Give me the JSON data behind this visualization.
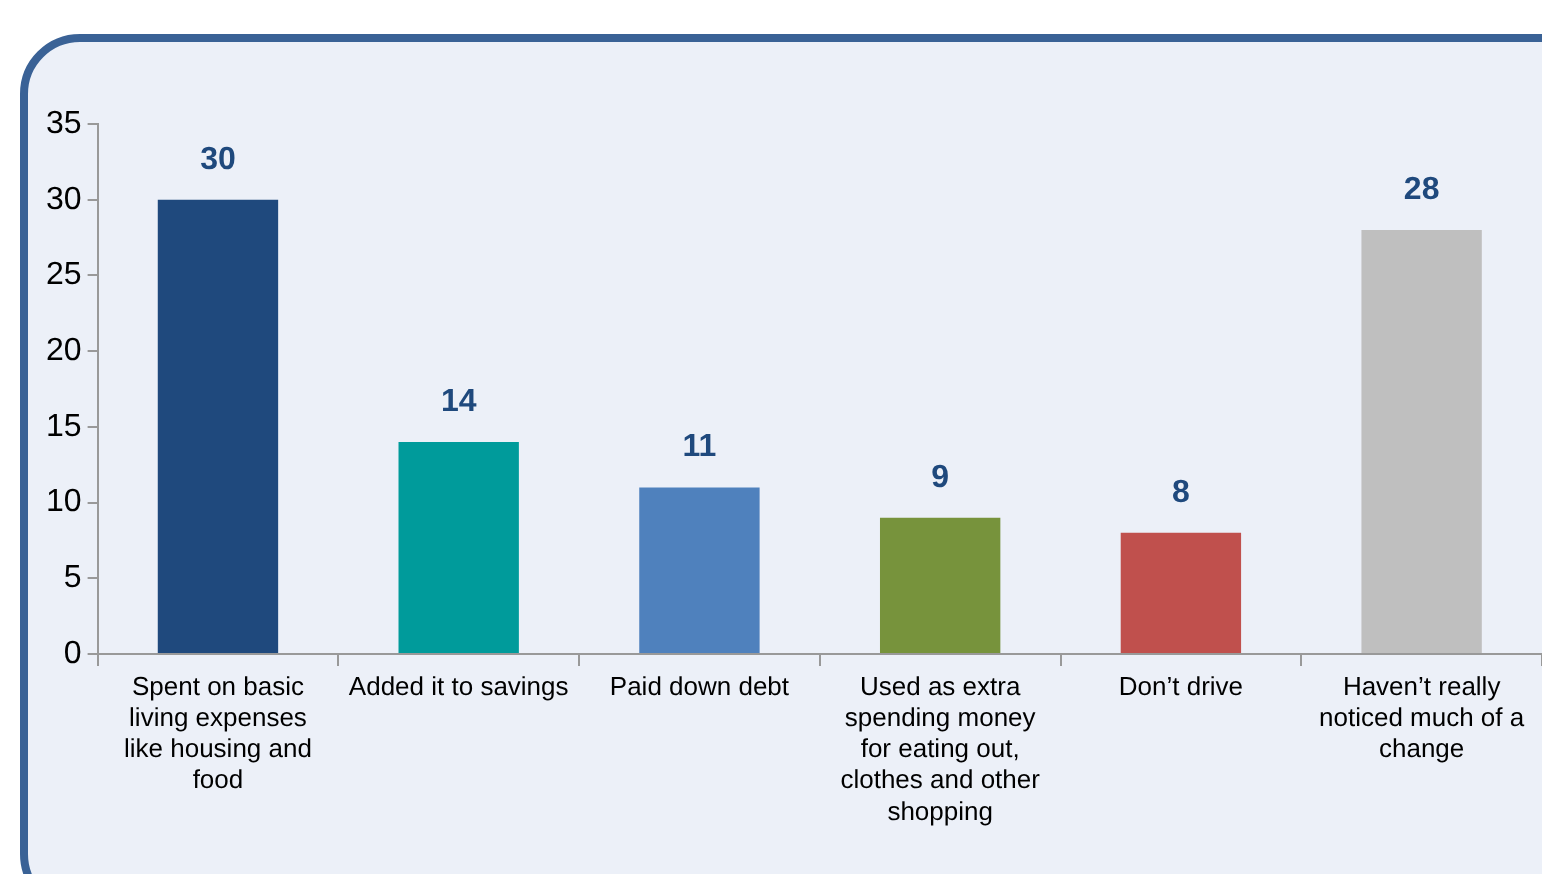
{
  "chart_data": {
    "type": "bar",
    "categories": [
      "Spent on basic living expenses like housing and food",
      "Added it to savings",
      "Paid down debt",
      "Used as extra spending money for eating out, clothes and other shopping",
      "Don’t drive",
      "Haven’t really noticed much of a change"
    ],
    "values": [
      30,
      14,
      11,
      9,
      8,
      28
    ],
    "colors": [
      "#1f497d",
      "#009b9b",
      "#4f81bd",
      "#77933c",
      "#c0504d",
      "#bfbfbf"
    ],
    "ylim": [
      0,
      35
    ],
    "yticks": [
      0,
      5,
      10,
      15,
      20,
      25,
      30,
      35
    ],
    "grid": false,
    "legend": false,
    "data_labels": true
  }
}
